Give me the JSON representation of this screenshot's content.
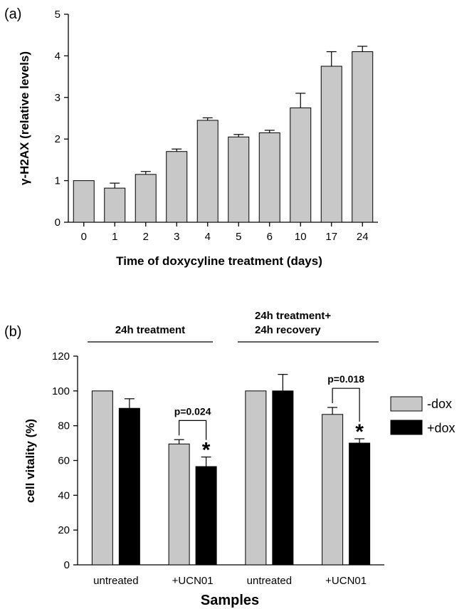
{
  "chart_data": [
    {
      "type": "bar",
      "panel_label": "(a)",
      "title": "",
      "xlabel": "Time of doxycyline treatment (days)",
      "ylabel": "γ-H2AX (relative levels)",
      "ylim": [
        0,
        5
      ],
      "yticks": [
        0,
        1,
        2,
        3,
        4,
        5
      ],
      "categories": [
        "0",
        "1",
        "2",
        "3",
        "4",
        "5",
        "6",
        "10",
        "17",
        "24"
      ],
      "values": [
        1.0,
        0.82,
        1.15,
        1.7,
        2.45,
        2.05,
        2.15,
        2.75,
        3.75,
        4.1
      ],
      "errors": [
        0.0,
        0.12,
        0.07,
        0.06,
        0.06,
        0.06,
        0.06,
        0.35,
        0.35,
        0.13
      ],
      "bar_color": "#c8c8c8",
      "grid": false
    },
    {
      "type": "bar",
      "panel_label": "(b)",
      "title": "",
      "xlabel": "Samples",
      "ylabel": "cell vitality (%)",
      "ylim": [
        0,
        120
      ],
      "yticks": [
        0,
        20,
        40,
        60,
        80,
        100,
        120
      ],
      "categories": [
        "untreated",
        "+UCN01",
        "untreated",
        "+UCN01"
      ],
      "groups": [
        "24h treatment",
        "24h treatment+\n24h recovery"
      ],
      "group_lines": [
        "24h treatment",
        "24h treatment+",
        "24h recovery"
      ],
      "series": [
        {
          "name": "-dox",
          "color": "#c8c8c8",
          "values": [
            100,
            69.5,
            100,
            86.5
          ],
          "errors": [
            0,
            2.5,
            0,
            4
          ]
        },
        {
          "name": "+dox",
          "color": "#000000",
          "values": [
            90,
            56.5,
            100,
            70
          ],
          "errors": [
            5.5,
            5.5,
            9.5,
            2.5
          ]
        }
      ],
      "annotations": [
        {
          "category_index": 1,
          "pvalue": "p=0.024",
          "mark": "*"
        },
        {
          "category_index": 3,
          "pvalue": "p=0.018",
          "mark": "*"
        }
      ],
      "legend_position": "right",
      "grid": false
    }
  ]
}
